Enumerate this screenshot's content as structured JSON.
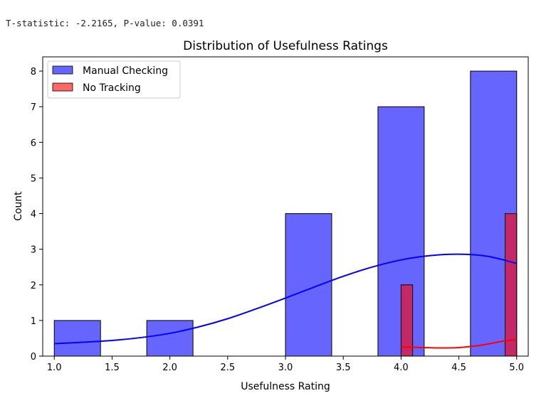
{
  "output_text": "T-statistic: -2.2165, P-value: 0.0391",
  "chart_data": {
    "type": "bar",
    "title": "Distribution of Usefulness Ratings",
    "xlabel": "Usefulness Rating",
    "ylabel": "Count",
    "xlim": [
      0.9,
      5.1
    ],
    "ylim": [
      0,
      8.4
    ],
    "xticks": [
      1.0,
      1.5,
      2.0,
      2.5,
      3.0,
      3.5,
      4.0,
      4.5,
      5.0
    ],
    "xtick_labels": [
      "1.0",
      "1.5",
      "2.0",
      "2.5",
      "3.0",
      "3.5",
      "4.0",
      "4.5",
      "5.0"
    ],
    "yticks": [
      0,
      1,
      2,
      3,
      4,
      5,
      6,
      7,
      8
    ],
    "ytick_labels": [
      "0",
      "1",
      "2",
      "3",
      "4",
      "5",
      "6",
      "7",
      "8"
    ],
    "legend_position": "top-left",
    "grid": false,
    "series": [
      {
        "name": "Manual Checking",
        "color": "#0000ff",
        "fill_opacity": 0.6,
        "bins": [
          {
            "x0": 1.0,
            "x1": 1.4,
            "count": 1
          },
          {
            "x0": 1.8,
            "x1": 2.2,
            "count": 1
          },
          {
            "x0": 3.0,
            "x1": 3.4,
            "count": 4
          },
          {
            "x0": 3.8,
            "x1": 4.2,
            "count": 7
          },
          {
            "x0": 4.6,
            "x1": 5.0,
            "count": 8
          }
        ],
        "kde": {
          "x": [
            1.0,
            1.25,
            1.5,
            1.75,
            2.0,
            2.25,
            2.5,
            2.75,
            3.0,
            3.25,
            3.5,
            3.75,
            4.0,
            4.25,
            4.5,
            4.75,
            5.0
          ],
          "y": [
            0.35,
            0.39,
            0.44,
            0.52,
            0.64,
            0.82,
            1.05,
            1.33,
            1.63,
            1.94,
            2.24,
            2.5,
            2.7,
            2.82,
            2.86,
            2.8,
            2.6
          ]
        }
      },
      {
        "name": "No Tracking",
        "color": "#ff0000",
        "fill_opacity": 0.6,
        "bins": [
          {
            "x0": 4.0,
            "x1": 4.1,
            "count": 2
          },
          {
            "x0": 4.9,
            "x1": 5.0,
            "count": 4
          }
        ],
        "kde": {
          "x": [
            4.0,
            4.1,
            4.2,
            4.3,
            4.4,
            4.5,
            4.6,
            4.7,
            4.8,
            4.9,
            5.0
          ],
          "y": [
            0.26,
            0.25,
            0.24,
            0.23,
            0.23,
            0.24,
            0.27,
            0.31,
            0.37,
            0.43,
            0.46
          ]
        }
      }
    ]
  }
}
